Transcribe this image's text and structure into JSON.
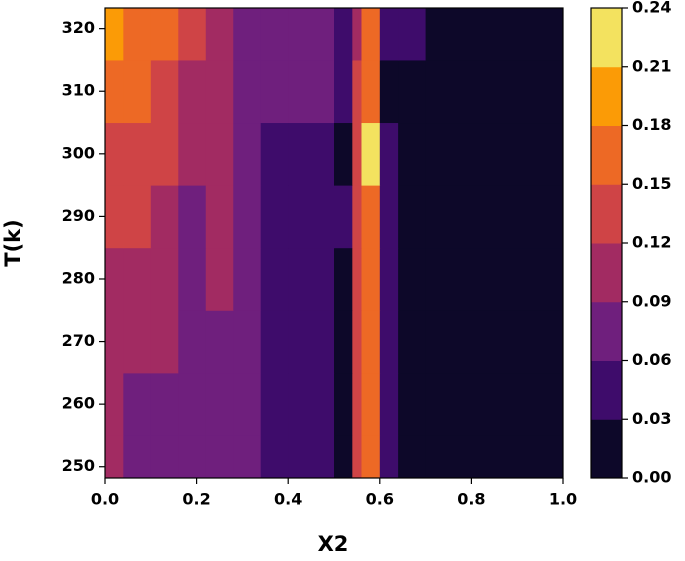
{
  "chart_data": {
    "type": "contour",
    "xlabel": "X2",
    "ylabel": "T(k)",
    "xlim": [
      0,
      1
    ],
    "ylim": [
      248.2,
      323.3
    ],
    "xticks": [
      {
        "value": 0,
        "label": "0.0"
      },
      0.2,
      0.4,
      0.6,
      0.8,
      {
        "value": 1,
        "label": "1.0"
      }
    ],
    "yticks": [
      250,
      260,
      270,
      280,
      290,
      300,
      310,
      320
    ],
    "x_bins": [
      0,
      0.04,
      0.1,
      0.16,
      0.22,
      0.28,
      0.34,
      0.4,
      0.5,
      0.54,
      0.56,
      0.6,
      0.64,
      0.7,
      1.0
    ],
    "y_bins": [
      248.2,
      255,
      265,
      275,
      285,
      295,
      305,
      315,
      323.3
    ],
    "z": [
      [
        0.105,
        0.075,
        0.075,
        0.075,
        0.075,
        0.075,
        0.045,
        0.045,
        0.015,
        0.135,
        0.165,
        0.045,
        0.015,
        0.015
      ],
      [
        0.105,
        0.075,
        0.075,
        0.075,
        0.075,
        0.075,
        0.045,
        0.045,
        0.015,
        0.135,
        0.165,
        0.045,
        0.015,
        0.015
      ],
      [
        0.105,
        0.105,
        0.105,
        0.075,
        0.075,
        0.075,
        0.045,
        0.045,
        0.015,
        0.135,
        0.165,
        0.045,
        0.015,
        0.015
      ],
      [
        0.105,
        0.105,
        0.105,
        0.075,
        0.105,
        0.075,
        0.045,
        0.045,
        0.015,
        0.135,
        0.165,
        0.045,
        0.015,
        0.015
      ],
      [
        0.135,
        0.135,
        0.105,
        0.075,
        0.105,
        0.075,
        0.045,
        0.045,
        0.045,
        0.135,
        0.165,
        0.045,
        0.015,
        0.015
      ],
      [
        0.135,
        0.135,
        0.135,
        0.105,
        0.105,
        0.075,
        0.045,
        0.045,
        0.015,
        0.135,
        0.225,
        0.045,
        0.015,
        0.015
      ],
      [
        0.165,
        0.165,
        0.135,
        0.105,
        0.105,
        0.075,
        0.075,
        0.075,
        0.045,
        0.135,
        0.165,
        0.015,
        0.015,
        0.015
      ],
      [
        0.195,
        0.165,
        0.165,
        0.135,
        0.105,
        0.075,
        0.075,
        0.075,
        0.045,
        0.105,
        0.165,
        0.045,
        0.045,
        0.015
      ]
    ],
    "levels": [
      {
        "value": 0,
        "label": "0.00"
      },
      {
        "value": 0.03,
        "label": "0.03"
      },
      {
        "value": 0.06,
        "label": "0.06"
      },
      {
        "value": 0.09,
        "label": "0.09"
      },
      {
        "value": 0.12,
        "label": "0.12"
      },
      {
        "value": 0.15,
        "label": "0.15"
      },
      {
        "value": 0.18,
        "label": "0.18"
      },
      {
        "value": 0.21,
        "label": "0.21"
      },
      {
        "value": 0.24,
        "label": "0.24"
      }
    ],
    "colors": [
      "#0d0829",
      "#3e0c6b",
      "#6f1f7d",
      "#a22b62",
      "#cf4446",
      "#ed6925",
      "#fb9b06",
      "#f3e25f"
    ]
  }
}
